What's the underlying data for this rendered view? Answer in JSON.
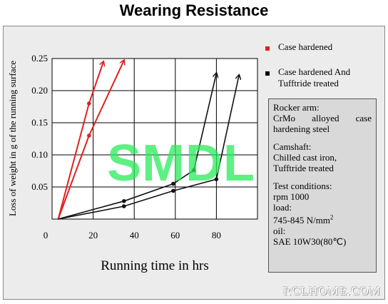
{
  "title": "Wearing Resistance",
  "chart_data": {
    "type": "line",
    "xlabel": "Running time in hrs",
    "ylabel": "Loss of weight in g of the running surface",
    "xlim": [
      0,
      100
    ],
    "ylim": [
      0,
      0.25
    ],
    "xticks": [
      "0",
      "20",
      "40",
      "60",
      "80"
    ],
    "xtick_values": [
      0,
      20,
      40,
      60,
      80
    ],
    "yticks": [
      "0.05",
      "0.10",
      "0.15",
      "0.20",
      "0.25"
    ],
    "ytick_values": [
      0.05,
      0.1,
      0.15,
      0.2,
      0.25
    ],
    "grid": true,
    "series": [
      {
        "name": "Case hardened",
        "color": "#e02020",
        "lines": [
          {
            "points": [
              [
                3,
                0.0
              ],
              [
                18,
                0.18
              ],
              [
                25,
                0.245
              ]
            ],
            "markers": [
              [
                18,
                0.18
              ]
            ]
          },
          {
            "points": [
              [
                3,
                0.0
              ],
              [
                18,
                0.13
              ],
              [
                35,
                0.247
              ]
            ],
            "markers": [
              [
                18,
                0.13
              ]
            ]
          }
        ]
      },
      {
        "name": "Case hardened And Tufftride treated",
        "color": "#111111",
        "lines": [
          {
            "points": [
              [
                3,
                0.0
              ],
              [
                35,
                0.028
              ],
              [
                59,
                0.055
              ],
              [
                69,
                0.076
              ],
              [
                80,
                0.227
              ]
            ],
            "markers": [
              [
                35,
                0.028
              ],
              [
                59,
                0.055
              ],
              [
                69,
                0.076
              ]
            ]
          },
          {
            "points": [
              [
                3,
                0.0
              ],
              [
                35,
                0.02
              ],
              [
                59,
                0.044
              ],
              [
                80,
                0.062
              ],
              [
                91,
                0.224
              ]
            ],
            "markers": [
              [
                35,
                0.02
              ],
              [
                59,
                0.044
              ],
              [
                80,
                0.062
              ]
            ]
          }
        ]
      }
    ]
  },
  "legend": {
    "item1": "Case hardened",
    "item2_line1": "Case hardened And",
    "item2_line2": "Tufftride treated",
    "color1": "#e02020",
    "color2": "#000000"
  },
  "info": {
    "rocker_title": "Rocker arm:",
    "rocker_l1": "CrMo alloyed case",
    "rocker_l2": "hardening steel",
    "camshaft_title": "Camshaft:",
    "camshaft_l1": "Chilled cast iron,",
    "camshaft_l2": "Tufftride treated",
    "test_title": "Test conditions:",
    "rpm": "rpm 1000",
    "load_label": "load:",
    "load_value": "745-845 N/mm",
    "load_sup": "2",
    "oil_label": "oil:",
    "oil_value": "SAE 10W30(80℃)"
  },
  "watermark": "SMDL",
  "footer": "RCLHOME.COM"
}
